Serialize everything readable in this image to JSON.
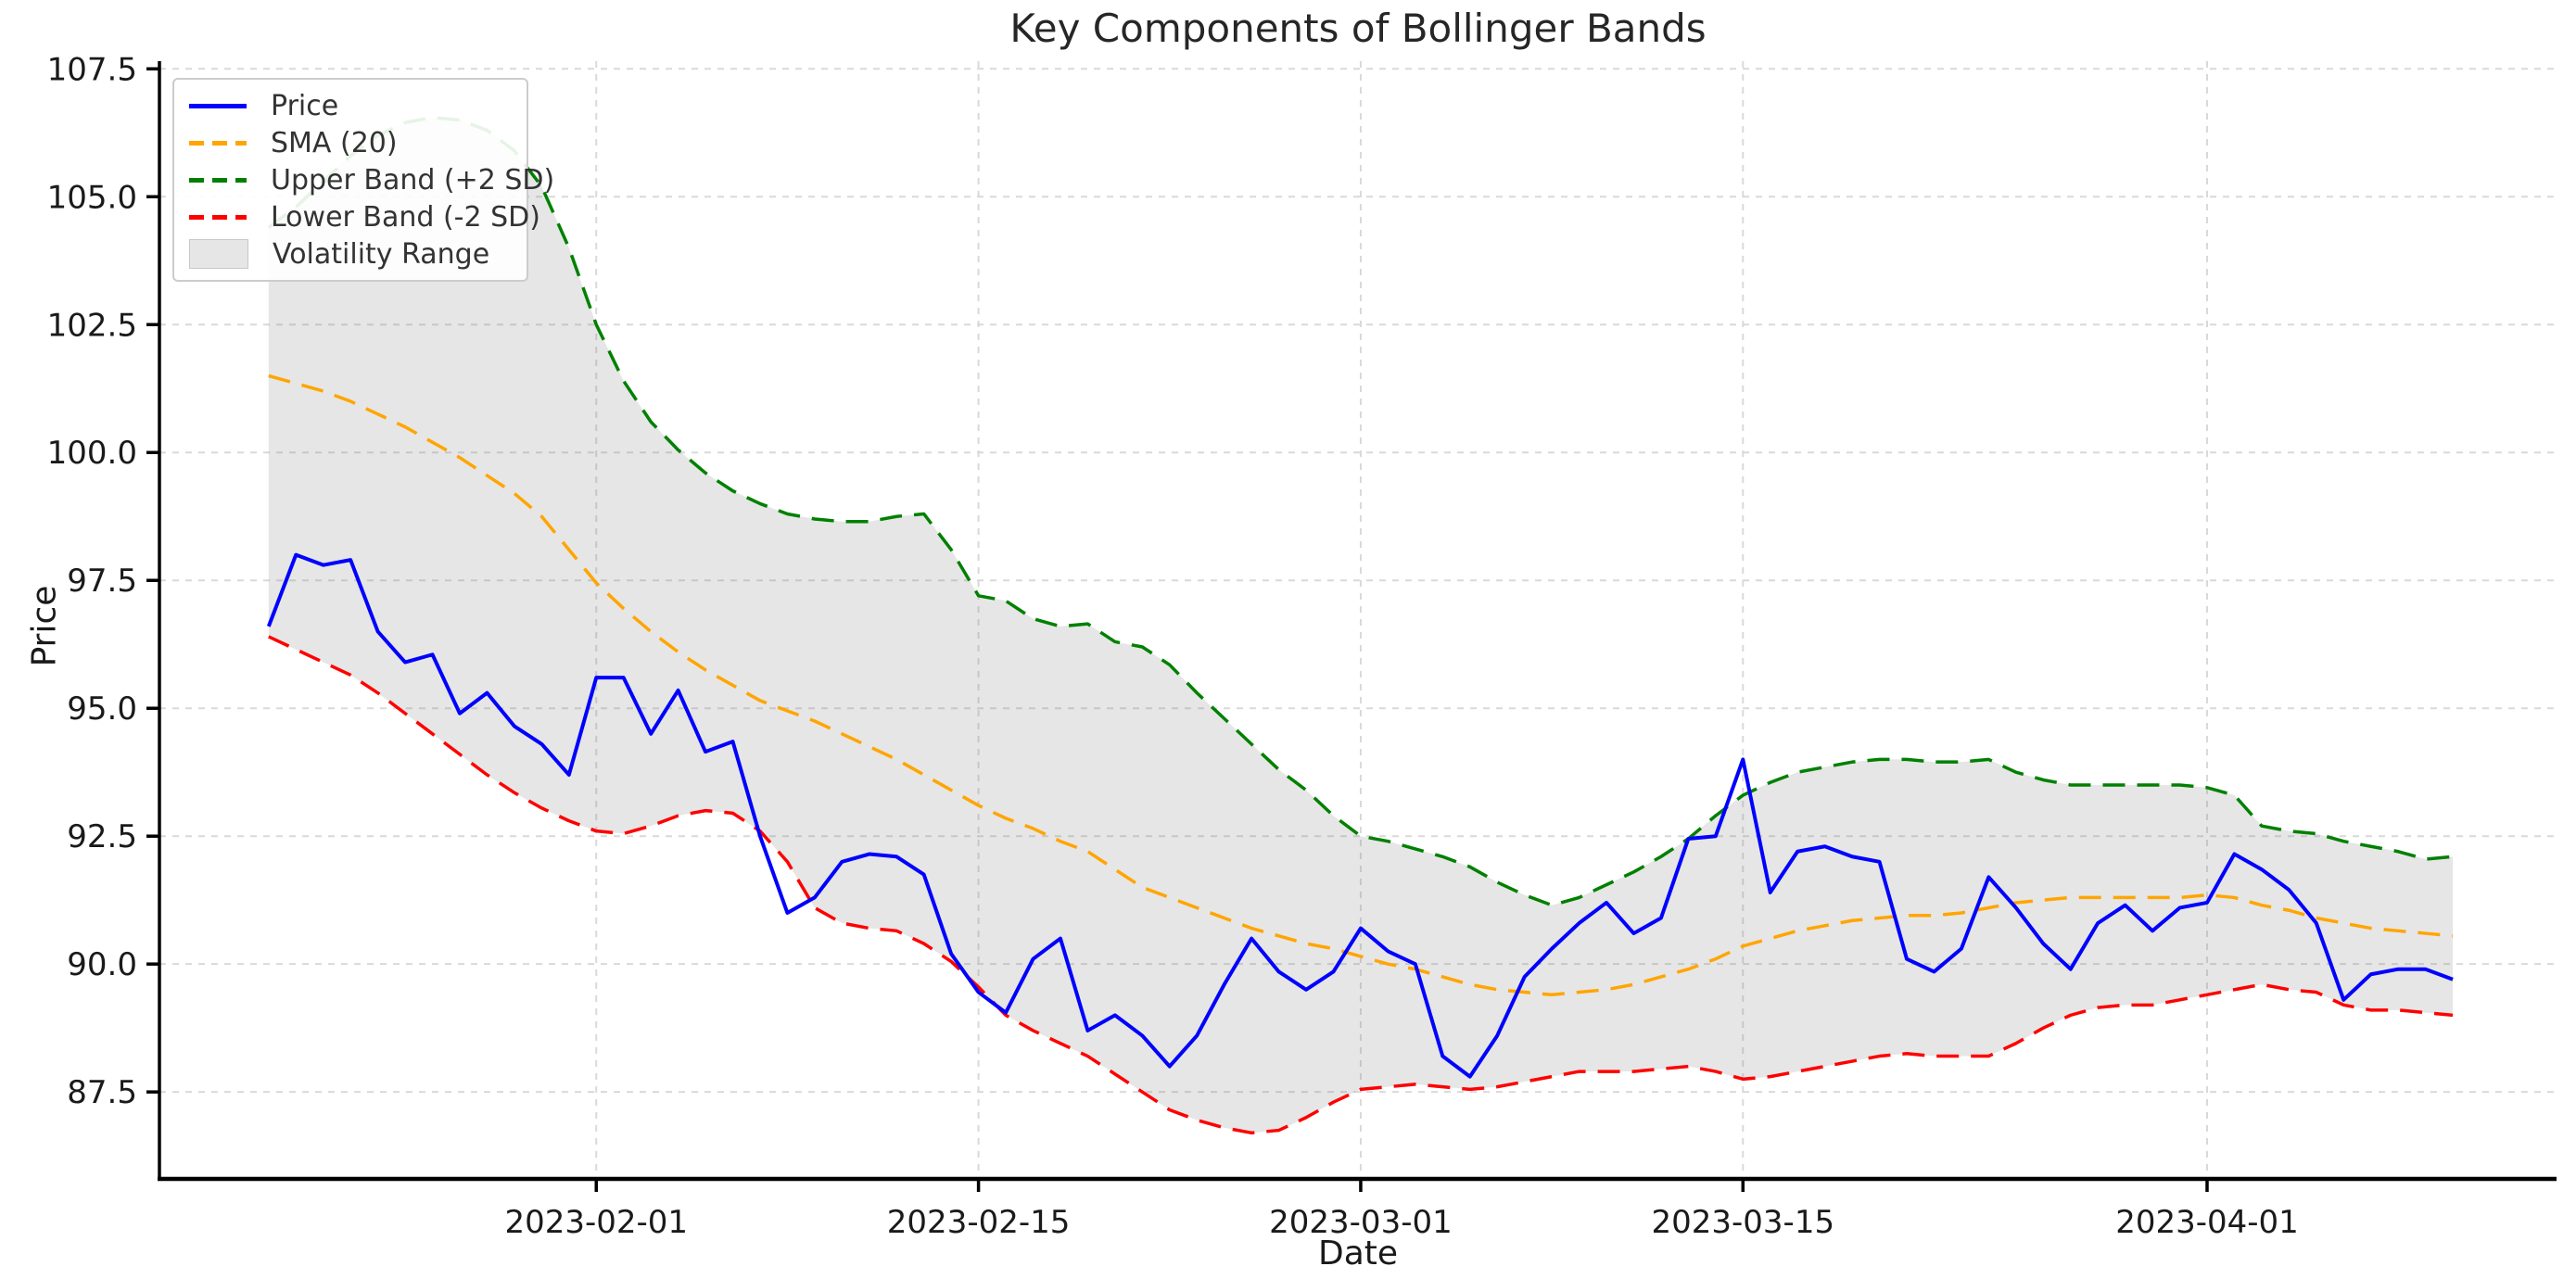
{
  "chart_data": {
    "type": "line",
    "title": "Key Components of Bollinger Bands",
    "xlabel": "Date",
    "ylabel": "Price",
    "grid": true,
    "legend_position": "upper left",
    "background_color": "#ffffff",
    "grid_color": "#d9d9d9",
    "x_ticks": [
      {
        "label": "2023-02-01",
        "index": 12
      },
      {
        "label": "2023-02-15",
        "index": 26
      },
      {
        "label": "2023-03-01",
        "index": 40
      },
      {
        "label": "2023-03-15",
        "index": 54
      },
      {
        "label": "2023-04-01",
        "index": 71
      }
    ],
    "y_ticks": [
      "87.5",
      "90.0",
      "92.5",
      "95.0",
      "97.5",
      "100.0",
      "102.5",
      "105.0",
      "107.5"
    ],
    "ylim": [
      85.8,
      107.65
    ],
    "xlim_day_index": [
      -4,
      83.8
    ],
    "x_dates": [
      "2023-01-20",
      "2023-01-21",
      "2023-01-22",
      "2023-01-23",
      "2023-01-24",
      "2023-01-25",
      "2023-01-26",
      "2023-01-27",
      "2023-01-28",
      "2023-01-29",
      "2023-01-30",
      "2023-01-31",
      "2023-02-01",
      "2023-02-02",
      "2023-02-03",
      "2023-02-04",
      "2023-02-05",
      "2023-02-06",
      "2023-02-07",
      "2023-02-08",
      "2023-02-09",
      "2023-02-10",
      "2023-02-11",
      "2023-02-12",
      "2023-02-13",
      "2023-02-14",
      "2023-02-15",
      "2023-02-16",
      "2023-02-17",
      "2023-02-18",
      "2023-02-19",
      "2023-02-20",
      "2023-02-21",
      "2023-02-22",
      "2023-02-23",
      "2023-02-24",
      "2023-02-25",
      "2023-02-26",
      "2023-02-27",
      "2023-02-28",
      "2023-03-01",
      "2023-03-02",
      "2023-03-03",
      "2023-03-04",
      "2023-03-05",
      "2023-03-06",
      "2023-03-07",
      "2023-03-08",
      "2023-03-09",
      "2023-03-10",
      "2023-03-11",
      "2023-03-12",
      "2023-03-13",
      "2023-03-14",
      "2023-03-15",
      "2023-03-16",
      "2023-03-17",
      "2023-03-18",
      "2023-03-19",
      "2023-03-20",
      "2023-03-21",
      "2023-03-22",
      "2023-03-23",
      "2023-03-24",
      "2023-03-25",
      "2023-03-26",
      "2023-03-27",
      "2023-03-28",
      "2023-03-29",
      "2023-03-30",
      "2023-03-31",
      "2023-04-01",
      "2023-04-02",
      "2023-04-03",
      "2023-04-04",
      "2023-04-05",
      "2023-04-06",
      "2023-04-07",
      "2023-04-08",
      "2023-04-09",
      "2023-04-10"
    ],
    "series": [
      {
        "name": "Price",
        "color": "#0000ff",
        "style": "solid",
        "linewidth": 4,
        "values": [
          96.6,
          98.0,
          97.8,
          97.9,
          96.5,
          95.9,
          96.05,
          94.9,
          95.3,
          94.65,
          94.3,
          93.7,
          95.6,
          95.6,
          94.5,
          95.35,
          94.15,
          94.35,
          92.5,
          91.0,
          91.3,
          92.0,
          92.15,
          92.1,
          91.75,
          90.2,
          89.45,
          89.05,
          90.1,
          90.5,
          88.7,
          89.0,
          88.6,
          88.0,
          88.6,
          89.6,
          90.5,
          89.85,
          89.5,
          89.85,
          90.7,
          90.25,
          90.0,
          88.2,
          87.8,
          88.6,
          89.75,
          90.3,
          90.8,
          91.2,
          90.6,
          90.9,
          92.45,
          92.5,
          94.0,
          91.4,
          92.2,
          92.3,
          92.1,
          92.0,
          90.1,
          89.85,
          90.3,
          91.7,
          91.1,
          90.4,
          89.9,
          90.8,
          91.15,
          90.65,
          91.1,
          91.2,
          92.15,
          91.85,
          91.45,
          90.8,
          89.3,
          89.8,
          89.9,
          89.9,
          89.7
        ]
      },
      {
        "name": "SMA (20)",
        "color": "#ffa500",
        "style": "dashed",
        "linewidth": 3.5,
        "values": [
          101.5,
          101.35,
          101.2,
          101.0,
          100.75,
          100.5,
          100.2,
          99.9,
          99.55,
          99.2,
          98.75,
          98.1,
          97.45,
          96.95,
          96.5,
          96.1,
          95.75,
          95.45,
          95.15,
          94.95,
          94.75,
          94.5,
          94.25,
          94.0,
          93.7,
          93.4,
          93.1,
          92.85,
          92.65,
          92.4,
          92.2,
          91.85,
          91.5,
          91.3,
          91.1,
          90.9,
          90.7,
          90.55,
          90.4,
          90.3,
          90.15,
          90.0,
          89.9,
          89.75,
          89.6,
          89.5,
          89.45,
          89.4,
          89.45,
          89.5,
          89.6,
          89.75,
          89.9,
          90.1,
          90.35,
          90.5,
          90.65,
          90.75,
          90.85,
          90.9,
          90.95,
          90.95,
          91.0,
          91.1,
          91.2,
          91.25,
          91.3,
          91.3,
          91.3,
          91.3,
          91.3,
          91.35,
          91.3,
          91.15,
          91.05,
          90.9,
          90.8,
          90.7,
          90.65,
          90.6,
          90.55
        ]
      },
      {
        "name": "Upper Band (+2 SD)",
        "color": "#008000",
        "style": "dashed",
        "linewidth": 3.5,
        "values": [
          104.4,
          104.8,
          105.3,
          105.8,
          106.2,
          106.45,
          106.55,
          106.5,
          106.3,
          105.9,
          105.2,
          104.0,
          102.5,
          101.4,
          100.6,
          100.05,
          99.6,
          99.25,
          99.0,
          98.8,
          98.7,
          98.65,
          98.65,
          98.75,
          98.8,
          98.1,
          97.2,
          97.1,
          96.75,
          96.6,
          96.65,
          96.3,
          96.2,
          95.85,
          95.3,
          94.8,
          94.3,
          93.8,
          93.4,
          92.9,
          92.5,
          92.4,
          92.25,
          92.1,
          91.9,
          91.6,
          91.35,
          91.15,
          91.3,
          91.55,
          91.8,
          92.1,
          92.45,
          92.9,
          93.3,
          93.55,
          93.75,
          93.85,
          93.95,
          94.0,
          94.0,
          93.95,
          93.95,
          94.0,
          93.75,
          93.6,
          93.5,
          93.5,
          93.5,
          93.5,
          93.5,
          93.45,
          93.3,
          92.7,
          92.6,
          92.55,
          92.4,
          92.3,
          92.2,
          92.05,
          92.1
        ]
      },
      {
        "name": "Lower Band (-2 SD)",
        "color": "#ff0000",
        "style": "dashed",
        "linewidth": 3.5,
        "values": [
          96.4,
          96.15,
          95.9,
          95.65,
          95.3,
          94.9,
          94.5,
          94.1,
          93.7,
          93.35,
          93.05,
          92.8,
          92.6,
          92.55,
          92.7,
          92.9,
          93.0,
          92.95,
          92.6,
          92.0,
          91.1,
          90.8,
          90.7,
          90.65,
          90.4,
          90.05,
          89.55,
          89.0,
          88.7,
          88.45,
          88.2,
          87.85,
          87.5,
          87.15,
          86.95,
          86.8,
          86.7,
          86.75,
          87.0,
          87.3,
          87.55,
          87.6,
          87.65,
          87.6,
          87.55,
          87.6,
          87.7,
          87.8,
          87.9,
          87.9,
          87.9,
          87.95,
          88.0,
          87.9,
          87.75,
          87.8,
          87.9,
          88.0,
          88.1,
          88.2,
          88.25,
          88.2,
          88.2,
          88.2,
          88.45,
          88.75,
          89.0,
          89.15,
          89.2,
          89.2,
          89.3,
          89.4,
          89.5,
          89.6,
          89.5,
          89.45,
          89.2,
          89.1,
          89.1,
          89.05,
          89.0
        ]
      }
    ],
    "band_fill": {
      "label": "Volatility Range",
      "between": [
        "Upper Band (+2 SD)",
        "Lower Band (-2 SD)"
      ],
      "color": "#808080",
      "alpha": 0.2
    },
    "legend_labels": [
      "Price",
      "SMA (20)",
      "Upper Band (+2 SD)",
      "Lower Band (-2 SD)",
      "Volatility Range"
    ]
  }
}
